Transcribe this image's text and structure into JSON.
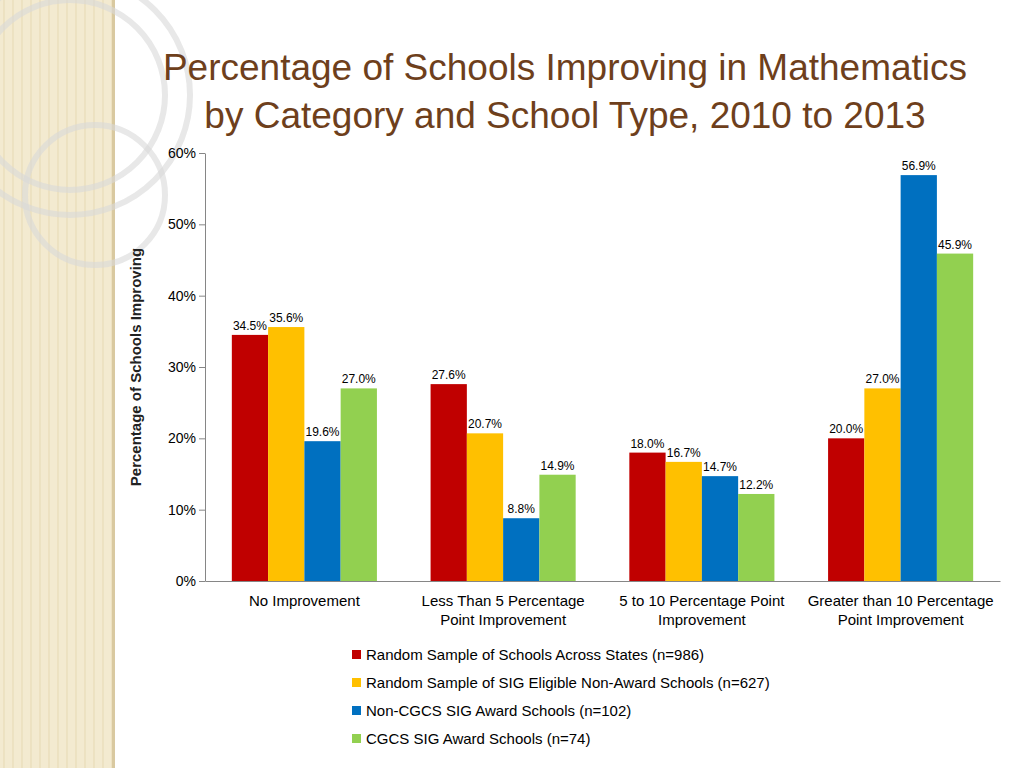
{
  "chart_data": {
    "type": "bar",
    "title": "Percentage of Schools Improving in Mathematics\nby Category and School Type, 2010 to 2013",
    "y_label": "Percentage of Schools Improving",
    "categories": [
      "No Improvement",
      "Less Than 5 Percentage Point Improvement",
      "5 to 10 Percentage Point Improvement",
      "Greater than 10 Percentage Point Improvement"
    ],
    "series": [
      {
        "name": "Random Sample of Schools Across States (n=986)",
        "color": "#c00000",
        "values": [
          34.5,
          27.6,
          18.0,
          20.0
        ],
        "value_labels": [
          "34.5%",
          "27.6%",
          "18.0%",
          "20.0%"
        ]
      },
      {
        "name": "Random Sample of SIG Eligible Non-Award Schools (n=627)",
        "color": "#ffc000",
        "values": [
          35.6,
          20.7,
          16.7,
          27.0
        ],
        "value_labels": [
          "35.6%",
          "20.7%",
          "16.7%",
          "27.0%"
        ]
      },
      {
        "name": "Non-CGCS SIG Award Schools (n=102)",
        "color": "#0070c0",
        "values": [
          19.6,
          8.8,
          14.7,
          56.9
        ],
        "value_labels": [
          "19.6%",
          "8.8%",
          "14.7%",
          "56.9%"
        ]
      },
      {
        "name": "CGCS SIG Award Schools (n=74)",
        "color": "#92d050",
        "values": [
          27.0,
          14.9,
          12.2,
          45.9
        ],
        "value_labels": [
          "27.0%",
          "14.9%",
          "12.2%",
          "45.9%"
        ]
      }
    ],
    "ylim": [
      0,
      60
    ],
    "yticks": [
      {
        "value": 0,
        "label": "0%"
      },
      {
        "value": 10,
        "label": "10%"
      },
      {
        "value": 20,
        "label": "20%"
      },
      {
        "value": 30,
        "label": "30%"
      },
      {
        "value": 40,
        "label": "40%"
      },
      {
        "value": 50,
        "label": "50%"
      },
      {
        "value": 60,
        "label": "60%"
      }
    ],
    "grid": false,
    "legend": "bottom",
    "data_labels": true
  }
}
